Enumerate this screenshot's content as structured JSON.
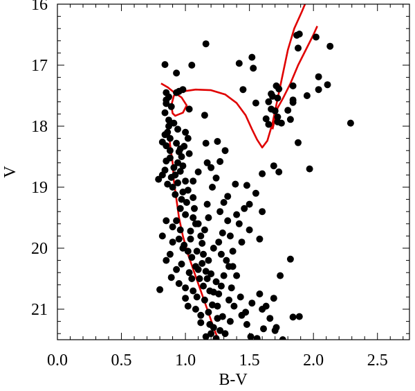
{
  "chart_data": {
    "type": "scatter",
    "title": "",
    "xlabel": "B-V",
    "ylabel": "V",
    "xlim": [
      0.0,
      2.75
    ],
    "ylim": [
      21.5,
      16.0
    ],
    "y_inverted": true,
    "grid": false,
    "legend": "none",
    "xticks": [
      0.0,
      0.5,
      1.0,
      1.5,
      2.0,
      2.5
    ],
    "xtick_labels": [
      "0.0",
      "0.5",
      "1.0",
      "1.5",
      "2.0",
      "2.5"
    ],
    "yticks": [
      16,
      17,
      18,
      19,
      20,
      21
    ],
    "ytick_labels": [
      "16",
      "17",
      "18",
      "19",
      "20",
      "21"
    ],
    "colors": {
      "points": "#000000",
      "isochrone": "#e00000",
      "axes": "#000000"
    },
    "series": [
      {
        "kind": "points",
        "points": [
          [
            1.16,
            16.65
          ],
          [
            0.84,
            16.99
          ],
          [
            0.93,
            17.13
          ],
          [
            1.42,
            16.97
          ],
          [
            1.52,
            16.87
          ],
          [
            1.53,
            17.05
          ],
          [
            1.89,
            16.49
          ],
          [
            1.87,
            16.51
          ],
          [
            2.02,
            16.54
          ],
          [
            1.88,
            16.72
          ],
          [
            2.13,
            16.69
          ],
          [
            2.04,
            17.19
          ],
          [
            2.11,
            17.32
          ],
          [
            2.04,
            17.4
          ],
          [
            1.84,
            17.34
          ],
          [
            1.95,
            17.5
          ],
          [
            1.84,
            17.57
          ],
          [
            1.84,
            17.61
          ],
          [
            1.73,
            17.39
          ],
          [
            1.71,
            17.34
          ],
          [
            1.45,
            17.4
          ],
          [
            1.55,
            17.62
          ],
          [
            1.65,
            17.6
          ],
          [
            1.67,
            17.47
          ],
          [
            1.68,
            17.51
          ],
          [
            1.67,
            17.72
          ],
          [
            1.7,
            17.75
          ],
          [
            1.72,
            17.85
          ],
          [
            1.72,
            17.93
          ],
          [
            1.63,
            17.88
          ],
          [
            1.65,
            17.97
          ],
          [
            1.75,
            17.95
          ],
          [
            1.82,
            17.89
          ],
          [
            1.8,
            17.74
          ],
          [
            1.88,
            18.27
          ],
          [
            2.29,
            17.95
          ],
          [
            1.72,
            17.54
          ],
          [
            0.98,
            17.4
          ],
          [
            0.95,
            17.43
          ],
          [
            1.03,
            17.72
          ],
          [
            1.15,
            17.82
          ],
          [
            0.85,
            17.45
          ],
          [
            0.85,
            17.57
          ],
          [
            0.85,
            17.63
          ],
          [
            0.84,
            17.78
          ],
          [
            0.87,
            17.9
          ],
          [
            0.87,
            18.0
          ],
          [
            0.86,
            18.1
          ],
          [
            0.84,
            18.14
          ],
          [
            0.88,
            18.2
          ],
          [
            0.82,
            18.26
          ],
          [
            0.85,
            18.32
          ],
          [
            0.88,
            18.4
          ],
          [
            0.93,
            18.28
          ],
          [
            0.96,
            18.37
          ],
          [
            0.99,
            18.33
          ],
          [
            0.95,
            18.42
          ],
          [
            0.94,
            18.6
          ],
          [
            0.91,
            18.68
          ],
          [
            0.96,
            18.74
          ],
          [
            0.98,
            18.65
          ],
          [
            0.89,
            18.84
          ],
          [
            0.94,
            18.93
          ],
          [
            0.86,
            18.95
          ],
          [
            0.85,
            18.57
          ],
          [
            0.84,
            18.72
          ],
          [
            0.82,
            18.8
          ],
          [
            0.79,
            18.87
          ],
          [
            1.03,
            18.45
          ],
          [
            1.0,
            18.9
          ],
          [
            1.02,
            19.05
          ],
          [
            0.92,
            19.12
          ],
          [
            0.97,
            19.2
          ],
          [
            0.96,
            19.35
          ],
          [
            1.0,
            19.45
          ],
          [
            0.93,
            19.55
          ],
          [
            1.06,
            19.5
          ],
          [
            1.1,
            19.6
          ],
          [
            1.04,
            19.72
          ],
          [
            0.95,
            19.85
          ],
          [
            0.99,
            19.95
          ],
          [
            1.02,
            20.05
          ],
          [
            1.05,
            20.15
          ],
          [
            0.97,
            20.26
          ],
          [
            1.08,
            20.3
          ],
          [
            1.13,
            20.25
          ],
          [
            1.16,
            20.38
          ],
          [
            1.11,
            20.5
          ],
          [
            1.2,
            20.42
          ],
          [
            1.24,
            20.55
          ],
          [
            1.14,
            20.62
          ],
          [
            1.19,
            20.7
          ],
          [
            1.26,
            20.75
          ],
          [
            1.09,
            20.8
          ],
          [
            1.15,
            20.85
          ],
          [
            1.21,
            20.93
          ],
          [
            1.18,
            21.05
          ],
          [
            1.25,
            21.15
          ],
          [
            1.12,
            21.22
          ],
          [
            1.22,
            21.3
          ],
          [
            1.27,
            21.35
          ],
          [
            1.31,
            21.4
          ],
          [
            1.16,
            21.45
          ],
          [
            1.24,
            21.48
          ],
          [
            1.08,
            21.0
          ],
          [
            1.02,
            20.95
          ],
          [
            1.32,
            20.2
          ],
          [
            1.28,
            20.1
          ],
          [
            1.34,
            20.3
          ],
          [
            1.4,
            20.45
          ],
          [
            1.36,
            20.65
          ],
          [
            1.43,
            20.8
          ],
          [
            1.38,
            20.95
          ],
          [
            1.44,
            21.1
          ],
          [
            1.48,
            21.25
          ],
          [
            1.51,
            21.45
          ],
          [
            1.56,
            21.48
          ],
          [
            1.61,
            21.32
          ],
          [
            1.47,
            21.05
          ],
          [
            1.52,
            20.9
          ],
          [
            1.58,
            20.75
          ],
          [
            1.63,
            20.95
          ],
          [
            1.66,
            21.15
          ],
          [
            1.71,
            21.3
          ],
          [
            1.6,
            21.0
          ],
          [
            1.69,
            20.82
          ],
          [
            1.74,
            20.45
          ],
          [
            1.58,
            19.85
          ],
          [
            1.5,
            19.7
          ],
          [
            1.44,
            19.9
          ],
          [
            1.37,
            20.05
          ],
          [
            1.42,
            19.6
          ],
          [
            1.33,
            19.55
          ],
          [
            1.29,
            19.75
          ],
          [
            1.46,
            19.35
          ],
          [
            1.5,
            19.28
          ],
          [
            1.6,
            19.4
          ],
          [
            1.55,
            19.1
          ],
          [
            1.48,
            18.97
          ],
          [
            1.39,
            18.95
          ],
          [
            1.33,
            19.15
          ],
          [
            1.27,
            19.4
          ],
          [
            1.3,
            19.25
          ],
          [
            1.24,
            18.85
          ],
          [
            1.2,
            18.68
          ],
          [
            1.17,
            18.6
          ],
          [
            1.27,
            18.58
          ],
          [
            1.31,
            18.4
          ],
          [
            1.25,
            18.25
          ],
          [
            1.16,
            18.28
          ],
          [
            1.6,
            18.78
          ],
          [
            1.69,
            18.65
          ],
          [
            1.73,
            18.75
          ],
          [
            1.97,
            18.7
          ],
          [
            1.82,
            20.18
          ],
          [
            1.84,
            21.13
          ],
          [
            1.89,
            21.12
          ],
          [
            1.76,
            21.5
          ],
          [
            1.7,
            21.35
          ],
          [
            1.21,
            19.0
          ],
          [
            1.17,
            19.28
          ],
          [
            1.13,
            19.92
          ],
          [
            1.06,
            19.17
          ],
          [
            0.85,
            19.55
          ],
          [
            0.9,
            19.65
          ],
          [
            0.82,
            19.8
          ],
          [
            0.85,
            20.2
          ],
          [
            0.93,
            20.35
          ],
          [
            0.89,
            20.48
          ],
          [
            0.95,
            20.58
          ],
          [
            1.0,
            20.65
          ],
          [
            0.8,
            20.68
          ],
          [
            1.03,
            20.4
          ],
          [
            1.09,
            20.05
          ],
          [
            1.14,
            20.1
          ],
          [
            1.18,
            20.2
          ],
          [
            1.22,
            20.0
          ],
          [
            1.26,
            19.9
          ],
          [
            1.12,
            19.8
          ],
          [
            1.07,
            19.35
          ],
          [
            1.01,
            19.25
          ],
          [
            0.98,
            19.08
          ],
          [
            0.9,
            19.0
          ],
          [
            0.92,
            18.8
          ],
          [
            0.88,
            18.52
          ],
          [
            0.97,
            18.5
          ],
          [
            1.06,
            18.9
          ],
          [
            1.1,
            18.75
          ],
          [
            1.0,
            18.1
          ],
          [
            1.02,
            18.2
          ],
          [
            0.94,
            18.05
          ],
          [
            0.91,
            17.95
          ],
          [
            0.89,
            17.68
          ],
          [
            0.87,
            17.52
          ],
          [
            0.93,
            17.45
          ],
          [
            1.05,
            17.0
          ],
          [
            1.35,
            21.2
          ],
          [
            1.2,
            21.4
          ],
          [
            1.29,
            21.12
          ],
          [
            1.34,
            20.85
          ],
          [
            1.28,
            20.62
          ],
          [
            1.22,
            20.72
          ],
          [
            1.17,
            20.5
          ],
          [
            1.1,
            20.35
          ],
          [
            1.05,
            20.5
          ],
          [
            1.0,
            20.82
          ],
          [
            1.06,
            20.7
          ],
          [
            1.12,
            21.1
          ],
          [
            1.19,
            21.25
          ],
          [
            1.25,
            20.95
          ],
          [
            1.3,
            20.45
          ],
          [
            1.37,
            20.3
          ],
          [
            1.35,
            19.8
          ],
          [
            1.4,
            19.45
          ],
          [
            1.18,
            19.5
          ],
          [
            1.15,
            19.7
          ],
          [
            1.08,
            19.6
          ],
          [
            1.04,
            19.85
          ],
          [
            0.96,
            19.7
          ],
          [
            0.98,
            20.0
          ],
          [
            0.9,
            19.9
          ],
          [
            0.88,
            20.1
          ]
        ]
      },
      {
        "kind": "isochrone",
        "points": [
          [
            0.81,
            17.3
          ],
          [
            0.86,
            17.36
          ],
          [
            0.92,
            17.46
          ],
          [
            0.97,
            17.53
          ],
          [
            1.01,
            17.66
          ],
          [
            0.98,
            17.78
          ],
          [
            0.92,
            17.83
          ],
          [
            0.9,
            17.79
          ],
          [
            0.89,
            17.66
          ],
          [
            0.91,
            17.5
          ],
          [
            0.98,
            17.43
          ],
          [
            1.08,
            17.4
          ],
          [
            1.2,
            17.41
          ],
          [
            1.31,
            17.48
          ],
          [
            1.4,
            17.62
          ],
          [
            1.47,
            17.82
          ],
          [
            1.52,
            18.05
          ],
          [
            1.56,
            18.22
          ],
          [
            1.6,
            18.35
          ],
          [
            1.64,
            18.24
          ],
          [
            1.68,
            17.95
          ],
          [
            1.72,
            17.55
          ],
          [
            1.76,
            17.15
          ],
          [
            1.8,
            16.75
          ],
          [
            1.85,
            16.4
          ],
          [
            1.91,
            16.12
          ],
          [
            1.95,
            15.92
          ]
        ]
      },
      {
        "kind": "isochrone",
        "points": [
          [
            1.68,
            18.05
          ],
          [
            1.72,
            17.7
          ],
          [
            1.76,
            17.55
          ],
          [
            1.82,
            17.3
          ],
          [
            1.88,
            17.0
          ],
          [
            1.94,
            16.75
          ],
          [
            2.0,
            16.5
          ],
          [
            2.03,
            16.36
          ]
        ]
      },
      {
        "kind": "isochrone",
        "points": [
          [
            0.86,
            17.85
          ],
          [
            0.87,
            18.05
          ],
          [
            0.88,
            18.3
          ],
          [
            0.9,
            18.6
          ],
          [
            0.91,
            18.9
          ],
          [
            0.93,
            19.2
          ],
          [
            0.95,
            19.5
          ],
          [
            0.98,
            19.8
          ],
          [
            1.02,
            20.1
          ],
          [
            1.07,
            20.4
          ],
          [
            1.12,
            20.7
          ],
          [
            1.17,
            21.0
          ],
          [
            1.22,
            21.3
          ],
          [
            1.26,
            21.52
          ]
        ]
      }
    ]
  }
}
